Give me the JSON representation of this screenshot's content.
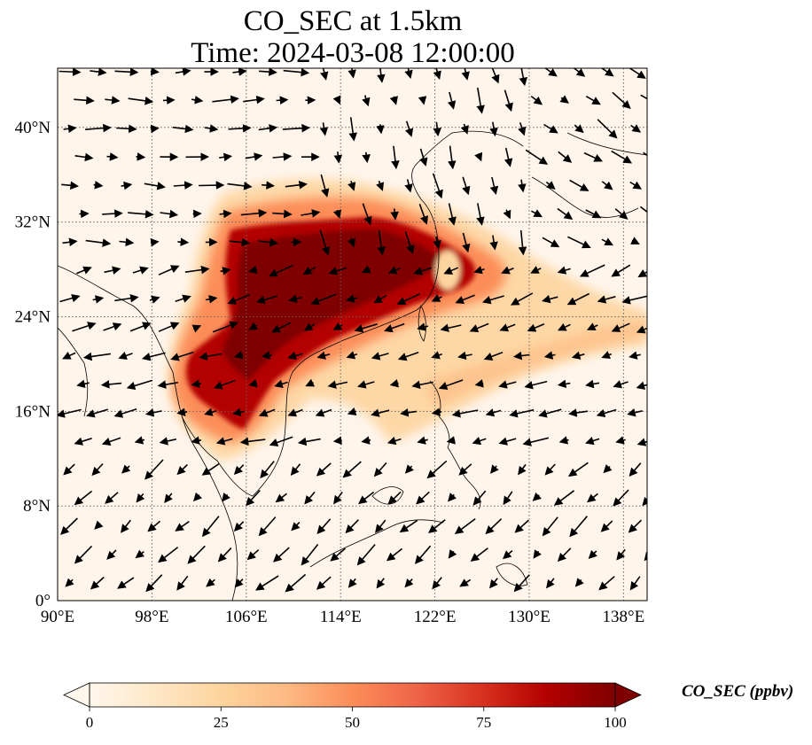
{
  "title": {
    "line1": "CO_SEC at 1.5km",
    "line2": "Time: 2024-03-08 12:00:00"
  },
  "map": {
    "lon_range": [
      90,
      140
    ],
    "lat_range": [
      0,
      45
    ],
    "x_tick_labels": [
      "90°E",
      "98°E",
      "106°E",
      "114°E",
      "122°E",
      "130°E",
      "138°E"
    ],
    "x_tick_values": [
      90,
      98,
      106,
      114,
      122,
      130,
      138
    ],
    "y_tick_labels": [
      "0°",
      "8°N",
      "16°N",
      "24°N",
      "32°N",
      "40°N"
    ],
    "y_tick_values": [
      0,
      8,
      16,
      24,
      32,
      40
    ],
    "gridlines": "dotted",
    "plume_core_color": "#7f0000",
    "plume_edge_color": "#fdbb84",
    "background_color": "#fff5eb",
    "wind_vectors": "black arrows, generally westward/southwestward flow south of 30°N, southeastward flow over northeast China and Korea"
  },
  "colorbar": {
    "label": "CO_SEC (ppbv)",
    "ticks": [
      "0",
      "25",
      "50",
      "75",
      "100"
    ],
    "tick_values": [
      0,
      25,
      50,
      75,
      100
    ],
    "range": [
      0,
      100
    ],
    "extend": "both",
    "colormap": "OrRd",
    "colors": [
      "#fff7ec",
      "#fee8c8",
      "#fdd49e",
      "#fdbb84",
      "#fc8d59",
      "#ef6548",
      "#d7301f",
      "#b30000",
      "#7f0000"
    ]
  }
}
